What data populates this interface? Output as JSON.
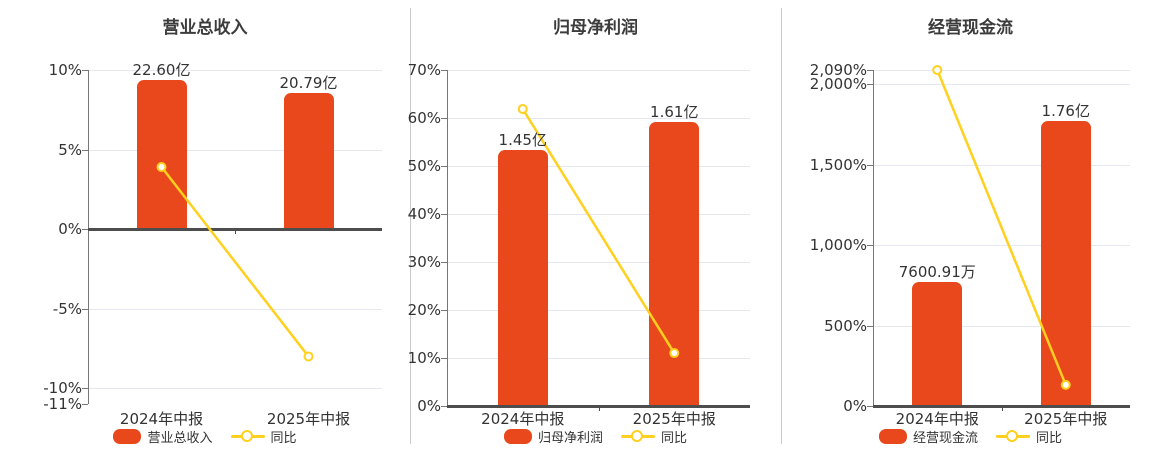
{
  "page": {
    "background": "#ffffff"
  },
  "colors": {
    "bar": "#e8481c",
    "line": "#ffd01e",
    "grid": "#e5e8f0",
    "zero_line": "#4d4d4d",
    "axis": "#777777",
    "text": "#333333",
    "divider": "#cccccc"
  },
  "chart_data": [
    {
      "type": "bar+line",
      "title": "营业总收入",
      "categories": [
        "2024年中报",
        "2025年中报"
      ],
      "bar": {
        "name": "营业总收入",
        "values_display": [
          "22.60亿",
          "20.79亿"
        ],
        "top_pct": [
          9.37,
          8.58
        ]
      },
      "line": {
        "name": "同比",
        "values_pct": [
          3.9,
          -8.01
        ]
      },
      "ylim": [
        -11,
        10
      ],
      "yticks": [
        {
          "v": 10,
          "label": "10%"
        },
        {
          "v": 5,
          "label": "5%"
        },
        {
          "v": 0,
          "label": "0%",
          "zero": true
        },
        {
          "v": -5,
          "label": "-5%"
        },
        {
          "v": -10,
          "label": "-10%"
        },
        {
          "v": -11,
          "label": "-11%",
          "grid": false
        }
      ],
      "legend_position": "bottom",
      "grid": true
    },
    {
      "type": "bar+line",
      "title": "归母净利润",
      "categories": [
        "2024年中报",
        "2025年中报"
      ],
      "bar": {
        "name": "归母净利润",
        "values_display": [
          "1.45亿",
          "1.61亿"
        ],
        "top_pct": [
          53.33,
          59.17
        ]
      },
      "line": {
        "name": "同比",
        "values_pct": [
          61.88,
          11.03
        ]
      },
      "ylim": [
        0,
        70
      ],
      "yticks": [
        {
          "v": 70,
          "label": "70%"
        },
        {
          "v": 60,
          "label": "60%"
        },
        {
          "v": 50,
          "label": "50%"
        },
        {
          "v": 40,
          "label": "40%"
        },
        {
          "v": 30,
          "label": "30%"
        },
        {
          "v": 20,
          "label": "20%"
        },
        {
          "v": 10,
          "label": "10%"
        },
        {
          "v": 0,
          "label": "0%",
          "zero": true
        }
      ],
      "legend_position": "bottom",
      "grid": true
    },
    {
      "type": "bar+line",
      "title": "经营现金流",
      "categories": [
        "2024年中报",
        "2025年中报"
      ],
      "bar": {
        "name": "经营现金流",
        "values_display": [
          "7600.91万",
          "1.76亿"
        ],
        "top_pct": [
          772,
          1772
        ]
      },
      "line": {
        "name": "同比",
        "values_pct": [
          2090,
          131.56
        ]
      },
      "ylim": [
        0,
        2090
      ],
      "yticks": [
        {
          "v": 2090,
          "label": "2,090%"
        },
        {
          "v": 2000,
          "label": "2,000%"
        },
        {
          "v": 1500,
          "label": "1,500%"
        },
        {
          "v": 1000,
          "label": "1,000%"
        },
        {
          "v": 500,
          "label": "500%"
        },
        {
          "v": 0,
          "label": "0%",
          "zero": true
        }
      ],
      "legend_position": "bottom",
      "grid": true
    }
  ]
}
